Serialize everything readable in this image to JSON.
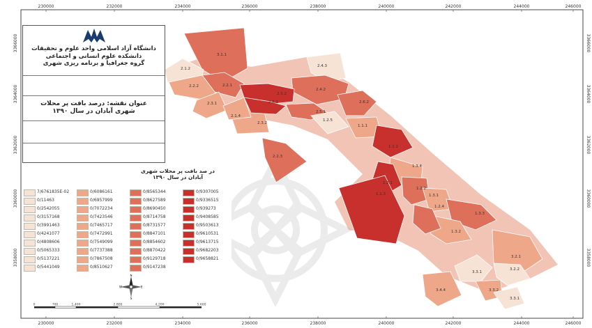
{
  "map": {
    "x_ticks_top": [
      "230000",
      "232000",
      "234000",
      "236000",
      "238000",
      "240000",
      "242000",
      "244000",
      "246000"
    ],
    "x_ticks_bottom": [
      "230000",
      "232000",
      "234000",
      "236000",
      "238000",
      "240000",
      "242000",
      "244000",
      "246000"
    ],
    "y_ticks_left": [
      "3366000",
      "3364000",
      "3362000",
      "3360000",
      "3358000"
    ],
    "y_ticks_right": [
      "3366000",
      "3364000",
      "3362000",
      "3360000",
      "3358000"
    ]
  },
  "title_block": {
    "institution_line1": "دانشگاه آزاد اسلامی واحد علوم و تحقیقات",
    "institution_line2": "دانشکده علوم انسانی و اجتماعی",
    "institution_line3": "گروه جغرافیا و برنامه ریزی شهری",
    "map_title_line1": "عنوان نقشه: درصد بافت پر محلات",
    "map_title_line2": "شهری آبادان در سال ۱۳۹۰"
  },
  "legend": {
    "title_line1": "در صد بافت پر محلات شهری",
    "title_line2": "آبادان در سال ۱۳۹۰",
    "columns": [
      {
        "color": "#f7e2d6",
        "items": [
          "7/6761835E-02",
          "0/11463",
          "0/2542055",
          "0/3157168",
          "0/3991463",
          "0/4241077",
          "0/4808606",
          "0/5065333",
          "0/5137221",
          "0/5441049"
        ]
      },
      {
        "color": "#eea889",
        "items": [
          "0/6086161",
          "0/6957999",
          "0/7072234",
          "0/7423546",
          "0/7465717",
          "0/7472991",
          "0/7549099",
          "0/7737388",
          "0/7867508",
          "0/8510627"
        ]
      },
      {
        "color": "#dd6f5b",
        "items": [
          "0/8565344",
          "0/8627589",
          "0/8690450",
          "0/8714758",
          "0/8731577",
          "0/8847101",
          "0/8854602",
          "0/8870422",
          "0/9129718",
          "0/9147238"
        ]
      },
      {
        "color": "#c7302c",
        "items": [
          "0/9307005",
          "0/9336515",
          "0/939273",
          "0/9408585",
          "0/9503613",
          "0/9610531",
          "0/9613715",
          "0/9682203",
          "0/9658821",
          ""
        ]
      }
    ]
  },
  "zones": [
    {
      "label": "3.1.1",
      "fill": "#dd6f5b"
    },
    {
      "label": "2.1.2",
      "fill": "#f7e2d6"
    },
    {
      "label": "2.2.2",
      "fill": "#eea889"
    },
    {
      "label": "2.2.1",
      "fill": "#dd6f5b"
    },
    {
      "label": "2.4.3",
      "fill": "#f7e2d6"
    },
    {
      "label": "2.4.2",
      "fill": "#dd6f5b"
    },
    {
      "label": "2.5.2",
      "fill": "#c7302c"
    },
    {
      "label": "2.3.1",
      "fill": "#eea889"
    },
    {
      "label": "2.3.2",
      "fill": "#eea889"
    },
    {
      "label": "2.1.4",
      "fill": "#eea889"
    },
    {
      "label": "2.6.1",
      "fill": "#c7302c"
    },
    {
      "label": "2.5.1",
      "fill": "#dd6f5b"
    },
    {
      "label": "1.2.5",
      "fill": "#f7e2d6"
    },
    {
      "label": "2.6.2",
      "fill": "#dd6f5b"
    },
    {
      "label": "1.1.1",
      "fill": "#eea889"
    },
    {
      "label": "1.1.2",
      "fill": "#c7302c"
    },
    {
      "label": "2.2.3",
      "fill": "#dd6f5b"
    },
    {
      "label": "1.3.4",
      "fill": "#eea889"
    },
    {
      "label": "1.2.1",
      "fill": "#c7302c"
    },
    {
      "label": "1.2.2",
      "fill": "#dd6f5b"
    },
    {
      "label": "1.3.1",
      "fill": "#eea889"
    },
    {
      "label": "1.3.3",
      "fill": "#dd6f5b"
    },
    {
      "label": "1.3.2",
      "fill": "#eea889"
    },
    {
      "label": "1.1.3",
      "fill": "#c7302c"
    },
    {
      "label": "1.2.4",
      "fill": "#dd6f5b"
    },
    {
      "label": "3.2.1",
      "fill": "#eea889"
    },
    {
      "label": "3.3.1",
      "fill": "#f7e2d6"
    },
    {
      "label": "3.2.2",
      "fill": "#f7e2d6"
    },
    {
      "label": "3.4.4",
      "fill": "#eea889"
    },
    {
      "label": "3.3.2",
      "fill": "#eea889"
    },
    {
      "label": "3.3.1",
      "fill": "#f7e2d6"
    }
  ],
  "scale_bar": {
    "labels": [
      "0",
      "700",
      "1,400",
      "2,800",
      "4,200",
      "5,600"
    ]
  },
  "north_arrow": {
    "n": "N",
    "s": "S",
    "e": "E",
    "w": "W"
  }
}
